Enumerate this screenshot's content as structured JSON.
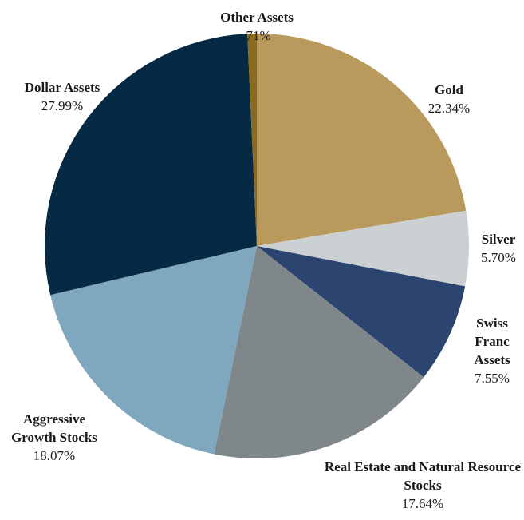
{
  "chart_data": {
    "type": "pie",
    "categories": [
      "Gold",
      "Silver",
      "Swiss Franc Assets",
      "Real Estate and Natural Resource Stocks",
      "Aggressive Growth Stocks",
      "Dollar Assets",
      "Other Assets"
    ],
    "values": [
      22.34,
      5.7,
      7.55,
      17.64,
      18.07,
      27.99,
      0.71
    ],
    "value_labels": [
      "22.34%",
      "5.70%",
      "7.55%",
      "17.64%",
      "18.07%",
      "27.99%",
      ".71%"
    ],
    "colors": [
      "#b99a5c",
      "#cbd0d2",
      "#2b4470",
      "#7f878b",
      "#7fa8bf",
      "#062a43",
      "#8a6a1e"
    ]
  }
}
